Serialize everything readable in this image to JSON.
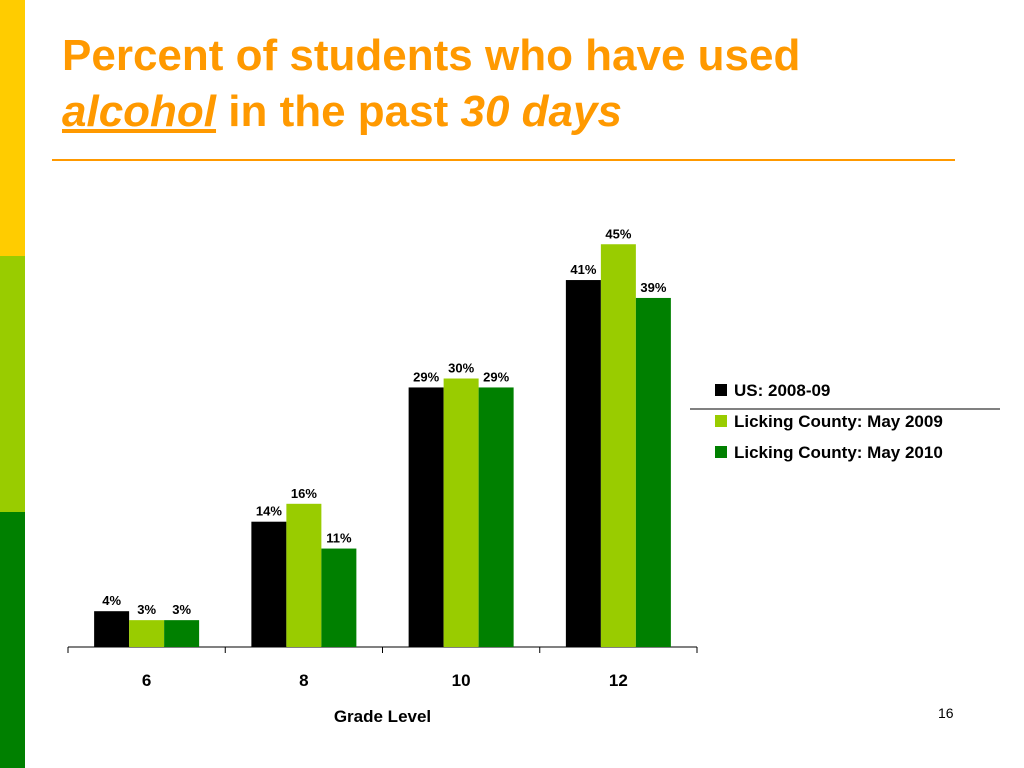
{
  "slide": {
    "title_part1": "Percent of students who have used",
    "title_alcohol": "alcohol",
    "title_middle": " in the past ",
    "title_days": "30 days",
    "slide_number": "16"
  },
  "theme": {
    "title_color": "#ff9900",
    "rule_color": "#ff9900",
    "side_bar_colors": [
      "#ffcc00",
      "#99cc00",
      "#008000"
    ]
  },
  "chart_data": {
    "type": "bar",
    "title": "",
    "xlabel": "Grade Level",
    "ylabel": "",
    "categories": [
      "6",
      "8",
      "10",
      "12"
    ],
    "ylim": [
      0,
      50
    ],
    "grid": false,
    "legend_position": "right",
    "series": [
      {
        "name": "US: 2008-09",
        "color": "#000000",
        "values": [
          4,
          14,
          29,
          41
        ],
        "labels": [
          "4%",
          "14%",
          "29%",
          "41%"
        ]
      },
      {
        "name": "Licking County: May 2009",
        "color": "#99cc00",
        "values": [
          3,
          16,
          30,
          45
        ],
        "labels": [
          "3%",
          "16%",
          "30%",
          "45%"
        ]
      },
      {
        "name": "Licking County: May 2010",
        "color": "#008000",
        "values": [
          3,
          11,
          29,
          39
        ],
        "labels": [
          "3%",
          "11%",
          "29%",
          "39%"
        ]
      }
    ]
  }
}
